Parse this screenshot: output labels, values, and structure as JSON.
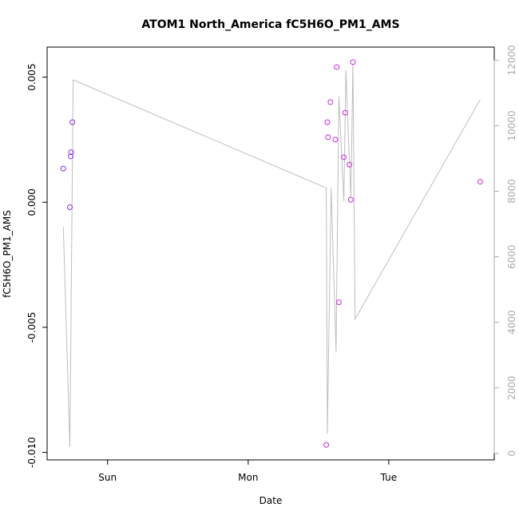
{
  "chart_data": {
    "type": "scatter",
    "title": "ATOM1 North_America fC5H6O_PM1_AMS",
    "xlabel": "Date",
    "ylabel": "fC5H6O_PM1_AMS",
    "x_axis": {
      "unit": "days",
      "range": [
        -0.43,
        2.75
      ],
      "ticks": [
        {
          "value": 0,
          "label": "Sun"
        },
        {
          "value": 1,
          "label": "Mon"
        },
        {
          "value": 2,
          "label": "Tue"
        }
      ]
    },
    "y_axis_left": {
      "range": [
        -0.0103,
        0.0062
      ],
      "ticks": [
        {
          "value": -0.01,
          "label": "-0.010"
        },
        {
          "value": -0.005,
          "label": "-0.005"
        },
        {
          "value": 0.0,
          "label": "0.000"
        },
        {
          "value": 0.005,
          "label": "0.005"
        }
      ]
    },
    "y_axis_right": {
      "range": [
        -200,
        12400
      ],
      "ticks": [
        {
          "value": 0,
          "label": "0"
        },
        {
          "value": 2000,
          "label": "2000"
        },
        {
          "value": 4000,
          "label": "4000"
        },
        {
          "value": 6000,
          "label": "6000"
        },
        {
          "value": 8000,
          "label": "8000"
        },
        {
          "value": 10000,
          "label": "10000"
        },
        {
          "value": 12000,
          "label": "12000"
        }
      ]
    },
    "grid": false,
    "colors": {
      "line": "#bebebe",
      "point_early": "#8a2be2",
      "point_late": "#e020e0",
      "axis": "#000000",
      "right_axis": "#aaaaaa"
    },
    "series": [
      {
        "type": "scatter",
        "axis": "left",
        "points": [
          {
            "x": -0.315,
            "y": 0.00135
          },
          {
            "x": -0.268,
            "y": -0.0002
          },
          {
            "x": -0.262,
            "y": 0.00183
          },
          {
            "x": -0.259,
            "y": 0.002
          },
          {
            "x": -0.25,
            "y": 0.0032
          },
          {
            "x": 1.555,
            "y": -0.0097
          },
          {
            "x": 1.563,
            "y": 0.0032
          },
          {
            "x": 1.568,
            "y": 0.0026
          },
          {
            "x": 1.585,
            "y": 0.004
          },
          {
            "x": 1.62,
            "y": 0.0025
          },
          {
            "x": 1.63,
            "y": 0.0054
          },
          {
            "x": 1.645,
            "y": -0.004
          },
          {
            "x": 1.68,
            "y": 0.0018
          },
          {
            "x": 1.69,
            "y": 0.00358
          },
          {
            "x": 1.72,
            "y": 0.0015
          },
          {
            "x": 1.73,
            "y": 0.0001
          },
          {
            "x": 1.745,
            "y": 0.0056
          },
          {
            "x": 2.65,
            "y": 0.00082
          }
        ]
      },
      {
        "type": "line",
        "axis": "right",
        "points": [
          {
            "x": -0.315,
            "y": 6900
          },
          {
            "x": -0.268,
            "y": 200
          },
          {
            "x": -0.245,
            "y": 11400
          },
          {
            "x": 1.555,
            "y": 8100
          },
          {
            "x": 1.563,
            "y": 600
          },
          {
            "x": 1.59,
            "y": 8100
          },
          {
            "x": 1.625,
            "y": 3100
          },
          {
            "x": 1.645,
            "y": 10900
          },
          {
            "x": 1.68,
            "y": 7700
          },
          {
            "x": 1.695,
            "y": 11700
          },
          {
            "x": 1.73,
            "y": 7800
          },
          {
            "x": 1.745,
            "y": 11900
          },
          {
            "x": 1.76,
            "y": 4100
          },
          {
            "x": 2.65,
            "y": 10800
          }
        ]
      }
    ]
  }
}
